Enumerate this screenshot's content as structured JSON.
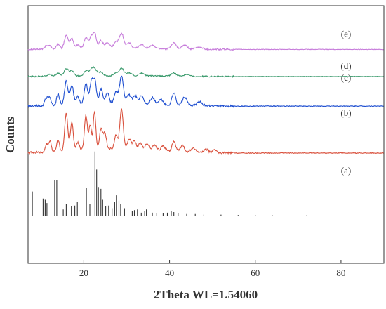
{
  "chart_data": {
    "type": "line",
    "title": "",
    "xlabel": "2Theta WL=1.54060",
    "ylabel": "Counts",
    "xlim": [
      7,
      90
    ],
    "xticks": [
      20,
      40,
      60,
      80
    ],
    "yticks_shown": false,
    "grid": false,
    "legend": "none",
    "series": [
      {
        "name": "(e)",
        "color": "#c77ddb",
        "baseline": 0.83,
        "scale": 0.06,
        "noise": 0.25,
        "tail": 0.7,
        "peaks": [
          {
            "x": 11.2,
            "h": 0.2,
            "w": 0.35
          },
          {
            "x": 12.0,
            "h": 0.25,
            "w": 0.35
          },
          {
            "x": 14.0,
            "h": 0.35,
            "w": 0.35
          },
          {
            "x": 15.9,
            "h": 0.85,
            "w": 0.45
          },
          {
            "x": 17.2,
            "h": 0.65,
            "w": 0.4
          },
          {
            "x": 18.6,
            "h": 0.25,
            "w": 0.4
          },
          {
            "x": 20.5,
            "h": 0.7,
            "w": 0.45
          },
          {
            "x": 21.8,
            "h": 0.8,
            "w": 0.45
          },
          {
            "x": 22.6,
            "h": 0.85,
            "w": 0.35
          },
          {
            "x": 24.0,
            "h": 0.5,
            "w": 0.45
          },
          {
            "x": 25.5,
            "h": 0.35,
            "w": 0.5
          },
          {
            "x": 27.5,
            "h": 0.4,
            "w": 0.5
          },
          {
            "x": 28.8,
            "h": 0.95,
            "w": 0.5
          },
          {
            "x": 30.5,
            "h": 0.35,
            "w": 0.5
          },
          {
            "x": 33.5,
            "h": 0.25,
            "w": 0.6
          },
          {
            "x": 36.0,
            "h": 0.2,
            "w": 0.6
          },
          {
            "x": 41.0,
            "h": 0.4,
            "w": 0.5
          },
          {
            "x": 43.5,
            "h": 0.25,
            "w": 0.6
          },
          {
            "x": 47.0,
            "h": 0.15,
            "w": 0.7
          }
        ]
      },
      {
        "name": "(d)",
        "color": "#3a9a6c",
        "baseline": 0.725,
        "scale": 0.04,
        "noise": 0.3,
        "tail": 0.6,
        "peaks": [
          {
            "x": 12.0,
            "h": 0.2,
            "w": 0.5
          },
          {
            "x": 14.0,
            "h": 0.3,
            "w": 0.5
          },
          {
            "x": 15.9,
            "h": 0.7,
            "w": 0.5
          },
          {
            "x": 17.2,
            "h": 0.5,
            "w": 0.5
          },
          {
            "x": 20.5,
            "h": 0.5,
            "w": 0.5
          },
          {
            "x": 21.8,
            "h": 0.6,
            "w": 0.5
          },
          {
            "x": 22.6,
            "h": 0.55,
            "w": 0.5
          },
          {
            "x": 24.0,
            "h": 0.35,
            "w": 0.5
          },
          {
            "x": 27.5,
            "h": 0.3,
            "w": 0.5
          },
          {
            "x": 28.8,
            "h": 0.75,
            "w": 0.5
          },
          {
            "x": 30.5,
            "h": 0.3,
            "w": 0.6
          },
          {
            "x": 33.5,
            "h": 0.25,
            "w": 0.6
          },
          {
            "x": 41.0,
            "h": 0.3,
            "w": 0.6
          },
          {
            "x": 44.0,
            "h": 0.2,
            "w": 0.6
          }
        ]
      },
      {
        "name": "(c)",
        "color": "#1f4fd0",
        "baseline": 0.61,
        "scale": 0.11,
        "noise": 0.18,
        "tail": 0.5,
        "peaks": [
          {
            "x": 11.2,
            "h": 0.25,
            "w": 0.35
          },
          {
            "x": 12.0,
            "h": 0.3,
            "w": 0.35
          },
          {
            "x": 14.0,
            "h": 0.4,
            "w": 0.35
          },
          {
            "x": 15.9,
            "h": 0.85,
            "w": 0.4
          },
          {
            "x": 17.2,
            "h": 0.7,
            "w": 0.4
          },
          {
            "x": 18.6,
            "h": 0.3,
            "w": 0.4
          },
          {
            "x": 20.5,
            "h": 0.75,
            "w": 0.4
          },
          {
            "x": 21.8,
            "h": 0.85,
            "w": 0.4
          },
          {
            "x": 22.6,
            "h": 0.8,
            "w": 0.35
          },
          {
            "x": 24.0,
            "h": 0.55,
            "w": 0.4
          },
          {
            "x": 25.5,
            "h": 0.4,
            "w": 0.45
          },
          {
            "x": 27.5,
            "h": 0.45,
            "w": 0.45
          },
          {
            "x": 28.8,
            "h": 1.0,
            "w": 0.45
          },
          {
            "x": 30.5,
            "h": 0.35,
            "w": 0.5
          },
          {
            "x": 32.0,
            "h": 0.3,
            "w": 0.5
          },
          {
            "x": 33.5,
            "h": 0.3,
            "w": 0.5
          },
          {
            "x": 36.0,
            "h": 0.25,
            "w": 0.55
          },
          {
            "x": 38.0,
            "h": 0.2,
            "w": 0.55
          },
          {
            "x": 41.0,
            "h": 0.45,
            "w": 0.45
          },
          {
            "x": 43.5,
            "h": 0.3,
            "w": 0.55
          },
          {
            "x": 47.0,
            "h": 0.15,
            "w": 0.6
          }
        ]
      },
      {
        "name": "(b)",
        "color": "#d9503c",
        "baseline": 0.428,
        "scale": 0.155,
        "noise": 0.12,
        "tail": 0.9,
        "peaks": [
          {
            "x": 11.3,
            "h": 0.2,
            "w": 0.3
          },
          {
            "x": 12.1,
            "h": 0.28,
            "w": 0.3
          },
          {
            "x": 14.0,
            "h": 0.3,
            "w": 0.3
          },
          {
            "x": 15.9,
            "h": 0.95,
            "w": 0.35
          },
          {
            "x": 17.2,
            "h": 0.7,
            "w": 0.35
          },
          {
            "x": 18.6,
            "h": 0.2,
            "w": 0.35
          },
          {
            "x": 20.5,
            "h": 0.85,
            "w": 0.35
          },
          {
            "x": 21.5,
            "h": 0.6,
            "w": 0.3
          },
          {
            "x": 22.5,
            "h": 0.95,
            "w": 0.3
          },
          {
            "x": 24.0,
            "h": 0.5,
            "w": 0.35
          },
          {
            "x": 24.9,
            "h": 0.4,
            "w": 0.35
          },
          {
            "x": 27.5,
            "h": 0.35,
            "w": 0.35
          },
          {
            "x": 28.8,
            "h": 1.0,
            "w": 0.4
          },
          {
            "x": 30.6,
            "h": 0.25,
            "w": 0.4
          },
          {
            "x": 31.8,
            "h": 0.2,
            "w": 0.4
          },
          {
            "x": 33.2,
            "h": 0.15,
            "w": 0.4
          },
          {
            "x": 34.8,
            "h": 0.15,
            "w": 0.45
          },
          {
            "x": 36.5,
            "h": 0.12,
            "w": 0.45
          },
          {
            "x": 38.5,
            "h": 0.12,
            "w": 0.45
          },
          {
            "x": 41.0,
            "h": 0.25,
            "w": 0.4
          },
          {
            "x": 43.0,
            "h": 0.15,
            "w": 0.45
          },
          {
            "x": 45.5,
            "h": 0.1,
            "w": 0.5
          },
          {
            "x": 48.5,
            "h": 0.08,
            "w": 0.5
          },
          {
            "x": 50.5,
            "h": 0.06,
            "w": 0.5
          }
        ]
      },
      {
        "name": "(a)",
        "color": "#333333",
        "type": "stick",
        "baseline": 0.184,
        "scale": 0.25,
        "sticks": [
          [
            8.0,
            0.38
          ],
          [
            10.5,
            0.27
          ],
          [
            11.0,
            0.25
          ],
          [
            11.4,
            0.2
          ],
          [
            13.2,
            0.55
          ],
          [
            13.7,
            0.56
          ],
          [
            15.2,
            0.1
          ],
          [
            15.9,
            0.18
          ],
          [
            17.1,
            0.15
          ],
          [
            17.9,
            0.16
          ],
          [
            18.5,
            0.22
          ],
          [
            20.6,
            0.44
          ],
          [
            21.4,
            0.18
          ],
          [
            22.6,
            1.0
          ],
          [
            23.0,
            0.72
          ],
          [
            23.4,
            0.45
          ],
          [
            24.0,
            0.42
          ],
          [
            24.4,
            0.25
          ],
          [
            25.1,
            0.15
          ],
          [
            25.8,
            0.16
          ],
          [
            26.6,
            0.12
          ],
          [
            27.2,
            0.22
          ],
          [
            27.6,
            0.32
          ],
          [
            28.2,
            0.24
          ],
          [
            28.6,
            0.18
          ],
          [
            29.5,
            0.12
          ],
          [
            31.3,
            0.08
          ],
          [
            31.8,
            0.09
          ],
          [
            32.5,
            0.1
          ],
          [
            33.4,
            0.05
          ],
          [
            34.2,
            0.08
          ],
          [
            34.6,
            0.1
          ],
          [
            36.0,
            0.05
          ],
          [
            37.0,
            0.04
          ],
          [
            38.5,
            0.04
          ],
          [
            39.5,
            0.05
          ],
          [
            40.4,
            0.07
          ],
          [
            41.0,
            0.06
          ],
          [
            42.0,
            0.04
          ],
          [
            44.0,
            0.03
          ],
          [
            46.0,
            0.03
          ],
          [
            48.0,
            0.02
          ],
          [
            52.0,
            0.02
          ],
          [
            56.0,
            0.015
          ],
          [
            60.0,
            0.015
          ],
          [
            64.0,
            0.01
          ],
          [
            72.0,
            0.01
          ]
        ]
      }
    ]
  }
}
